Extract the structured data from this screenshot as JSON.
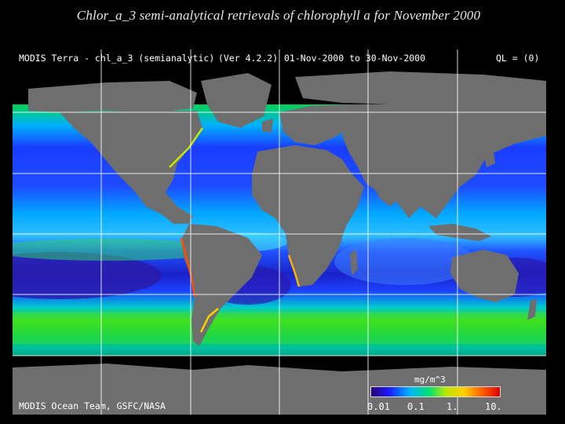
{
  "slide": {
    "title": "Chlor_a_3 semi-analytical retrievals of chlorophyll a for November 2000"
  },
  "map": {
    "header": {
      "product": "MODIS Terra - chl_a_3 (semianalytic)",
      "version": "(Ver 4.2.2)",
      "date_range": "01-Nov-2000 to 30-Nov-2000",
      "quality": "QL = (0)"
    },
    "credit": "MODIS Ocean Team, GSFC/NASA",
    "colorbar": {
      "unit": "mg/m^3",
      "ticks": [
        "0.01",
        "0.1",
        "1.",
        "10."
      ],
      "colors": [
        "#2a0070",
        "#1a1aff",
        "#00b4ff",
        "#00e070",
        "#b8e800",
        "#ffd000",
        "#ff6000",
        "#e00000"
      ]
    },
    "colors": {
      "land": "#6e6e6e",
      "ice_no_data": "#000000",
      "grid": "#ffffff"
    }
  }
}
